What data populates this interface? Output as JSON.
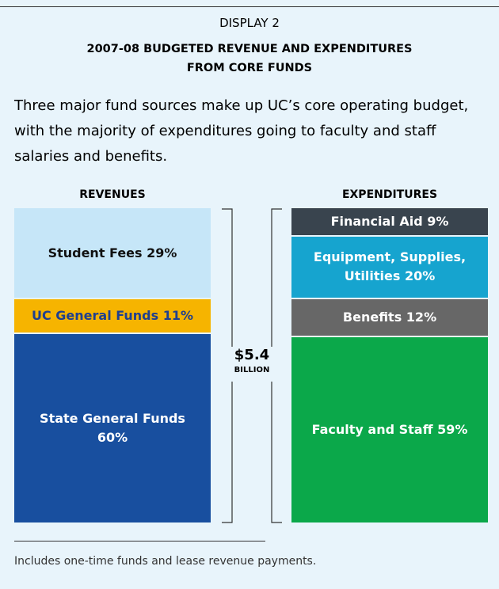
{
  "chart_data": {
    "type": "stacked-column",
    "label": "DISPLAY 2",
    "title": "2007-08 BUDGETED REVENUE AND EXPENDITURES FROM CORE FUNDS",
    "subtitle": "Three major fund sources make up UC’s core operating budget, with the majority of expenditures going to faculty and staff salaries and benefits.",
    "ylim": [
      0,
      100
    ],
    "columns": [
      {
        "name": "REVENUES",
        "segments": [
          {
            "value": 29,
            "value_label": "Student Fees 29%",
            "color": "#c6e6f8",
            "text_color": "#111111"
          },
          {
            "value": 11,
            "value_label": "UC General Funds 11%",
            "color": "#f6b400",
            "text_color": "#1f3f8f"
          },
          {
            "value": 60,
            "value_label": "State General Funds 60%",
            "color": "#184f9f",
            "text_color": "#ffffff"
          }
        ]
      },
      {
        "name": "EXPENDITURES",
        "segments": [
          {
            "value": 9,
            "value_label": "Financial Aid 9%",
            "color": "#39444e",
            "text_color": "#ffffff"
          },
          {
            "value": 20,
            "value_label": "Equipment, Supplies, Utilities 20%",
            "color": "#16a4cf",
            "text_color": "#ffffff"
          },
          {
            "value": 12,
            "value_label": "Benefits 12%",
            "color": "#676767",
            "text_color": "#ffffff"
          },
          {
            "value": 59,
            "value_label": "Faculty and Staff 59%",
            "color": "#0ba84a",
            "text_color": "#ffffff"
          }
        ]
      }
    ],
    "total": "$5.4",
    "total_unit": "BILLION",
    "footnote": "Includes one-time funds and lease revenue payments."
  }
}
